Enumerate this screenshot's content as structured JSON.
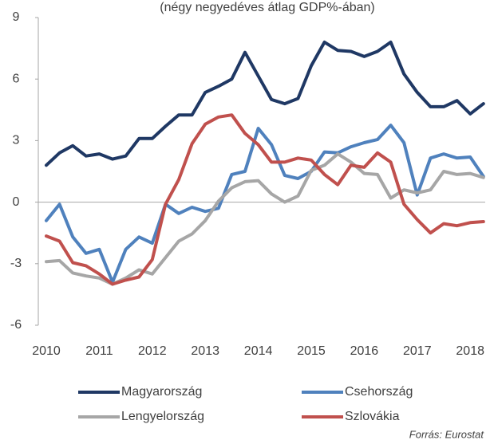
{
  "chart_data": {
    "type": "line",
    "subtitle": "(négy negyedéves átlag GDP%-ában)",
    "source": "Forrás: Eurostat",
    "categories": [
      "2010",
      null,
      null,
      null,
      "2011",
      null,
      null,
      null,
      "2012",
      null,
      null,
      null,
      "2013",
      null,
      null,
      null,
      "2014",
      null,
      null,
      null,
      "2015",
      null,
      null,
      null,
      "2016",
      null,
      null,
      null,
      "2017",
      null,
      null,
      null,
      "2018",
      null
    ],
    "series": [
      {
        "name": "Magyarország",
        "color": "#1f3864",
        "values": [
          1.8,
          2.4,
          2.75,
          2.25,
          2.35,
          2.1,
          2.25,
          3.1,
          3.1,
          3.7,
          4.25,
          4.25,
          5.35,
          5.65,
          6.0,
          7.3,
          6.15,
          5.0,
          4.8,
          5.05,
          6.65,
          7.8,
          7.4,
          7.35,
          7.1,
          7.35,
          7.8,
          6.25,
          5.35,
          4.65,
          4.65,
          4.95,
          4.3,
          4.8
        ]
      },
      {
        "name": "Csehország",
        "color": "#4f81bd",
        "values": [
          -0.9,
          -0.1,
          -1.7,
          -2.5,
          -2.3,
          -3.9,
          -2.3,
          -1.7,
          -2.0,
          -0.1,
          -0.55,
          -0.25,
          -0.45,
          -0.3,
          1.35,
          1.5,
          3.6,
          2.8,
          1.3,
          1.15,
          1.5,
          2.45,
          2.4,
          2.7,
          2.9,
          3.05,
          3.75,
          2.9,
          0.35,
          2.15,
          2.35,
          2.15,
          2.2,
          1.25
        ]
      },
      {
        "name": "Lengyelország",
        "color": "#a6a6a6",
        "values": [
          -2.9,
          -2.85,
          -3.45,
          -3.6,
          -3.7,
          -4.0,
          -3.7,
          -3.3,
          -3.5,
          -2.7,
          -1.9,
          -1.55,
          -0.9,
          0.05,
          0.7,
          1.0,
          1.05,
          0.4,
          0.0,
          0.3,
          1.55,
          1.8,
          2.35,
          1.95,
          1.4,
          1.35,
          0.2,
          0.6,
          0.45,
          0.6,
          1.5,
          1.35,
          1.4,
          1.2
        ]
      },
      {
        "name": "Szlovákia",
        "color": "#c0504d",
        "values": [
          -1.65,
          -1.9,
          -2.95,
          -3.1,
          -3.5,
          -4.0,
          -3.8,
          -3.65,
          -2.8,
          -0.1,
          1.1,
          2.85,
          3.8,
          4.15,
          4.25,
          3.35,
          2.8,
          1.95,
          1.95,
          2.15,
          2.05,
          1.35,
          0.85,
          1.8,
          1.7,
          2.4,
          1.95,
          -0.1,
          -0.85,
          -1.5,
          -1.05,
          -1.15,
          -1.0,
          -0.95
        ]
      }
    ],
    "ylim": [
      -6,
      9
    ],
    "yticks": [
      -6,
      -3,
      0,
      3,
      6,
      9
    ],
    "legend": "bottom"
  }
}
